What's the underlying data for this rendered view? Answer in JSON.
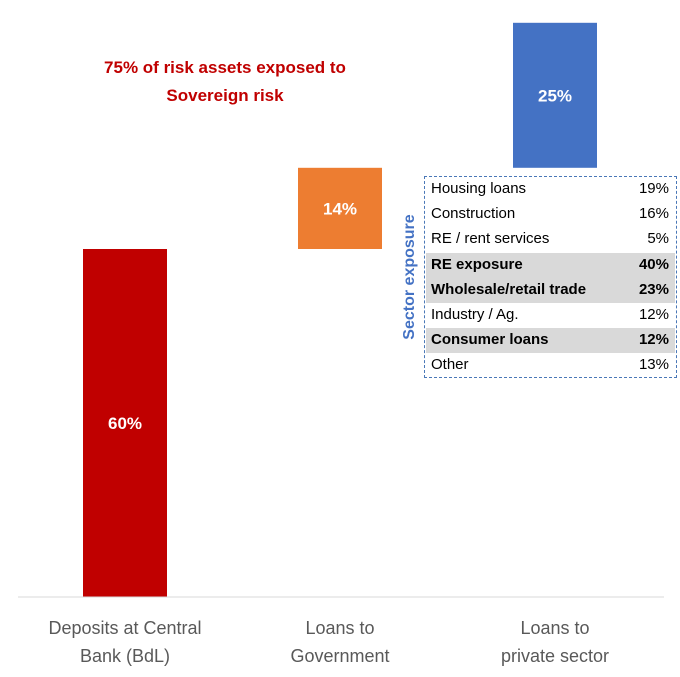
{
  "chart_data": {
    "type": "bar",
    "categories": [
      "Deposits at Central Bank (BdL)",
      "Loans to Government",
      "Loans to private sector"
    ],
    "category_lines": [
      [
        "Deposits at Central",
        "Bank (BdL)"
      ],
      [
        "Loans to",
        "Government"
      ],
      [
        "Loans to",
        "private sector"
      ]
    ],
    "stacking": "waterfall",
    "values": [
      60,
      14,
      25
    ],
    "data_labels": [
      "60%",
      "14%",
      "25%"
    ],
    "bar_colors": [
      "#c00000",
      "#ed7d31",
      "#4472c4"
    ],
    "ylim": [
      0,
      100
    ],
    "grid": false,
    "annotation": {
      "lines": [
        "75% of risk assets exposed to",
        "Sovereign risk"
      ],
      "color": "#c00000"
    },
    "sector_table": {
      "title": "Sector exposure",
      "title_color": "#4472c4",
      "rows": [
        {
          "label": "Housing loans",
          "value": "19%",
          "highlight": false
        },
        {
          "label": "Construction",
          "value": "16%",
          "highlight": false
        },
        {
          "label": "RE / rent services",
          "value": "5%",
          "highlight": false
        },
        {
          "label": "RE exposure",
          "value": "40%",
          "highlight": true
        },
        {
          "label": "Wholesale/retail trade",
          "value": "23%",
          "highlight": true
        },
        {
          "label": "Industry / Ag.",
          "value": "12%",
          "highlight": false
        },
        {
          "label": "Consumer loans",
          "value": "12%",
          "highlight": true
        },
        {
          "label": "Other",
          "value": "13%",
          "highlight": false
        }
      ]
    }
  }
}
